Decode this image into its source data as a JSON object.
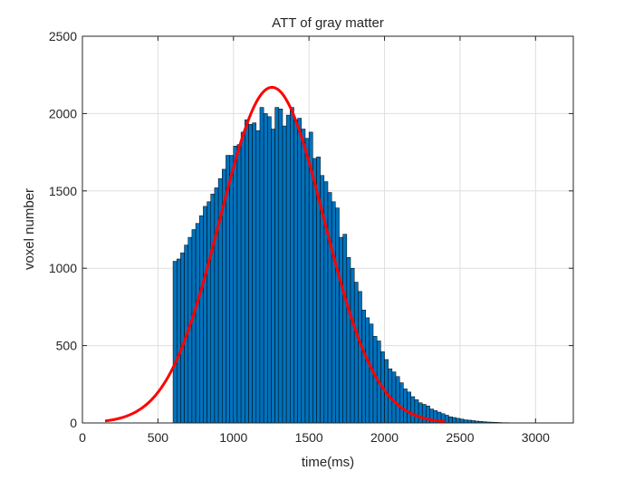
{
  "chart_data": {
    "type": "bar",
    "title": "ATT of gray matter",
    "xlabel": "time(ms)",
    "ylabel": "voxel number",
    "xlim": [
      0,
      3250
    ],
    "ylim": [
      0,
      2500
    ],
    "xticks": [
      0,
      500,
      1000,
      1500,
      2000,
      2500,
      3000
    ],
    "yticks": [
      0,
      500,
      1000,
      1500,
      2000,
      2500
    ],
    "grid": true,
    "histogram": {
      "bin_start": 600,
      "bin_width": 25,
      "counts": [
        1045,
        1060,
        1100,
        1150,
        1200,
        1250,
        1290,
        1340,
        1400,
        1430,
        1480,
        1520,
        1580,
        1640,
        1730,
        1730,
        1790,
        1800,
        1880,
        1960,
        1930,
        1940,
        1890,
        2040,
        2000,
        1980,
        1900,
        2040,
        2030,
        1920,
        1990,
        2040,
        1960,
        1970,
        1900,
        1840,
        1880,
        1710,
        1720,
        1600,
        1560,
        1490,
        1430,
        1390,
        1200,
        1220,
        1070,
        1000,
        910,
        850,
        730,
        680,
        640,
        560,
        530,
        460,
        410,
        350,
        330,
        300,
        260,
        220,
        200,
        170,
        150,
        130,
        120,
        110,
        90,
        80,
        70,
        60,
        50,
        40,
        35,
        30,
        25,
        20,
        18,
        15,
        12,
        10,
        8,
        6,
        5,
        4,
        3,
        2,
        2,
        1,
        1,
        1,
        1
      ],
      "fill_color": "#0072BD",
      "edge_color": "#000000"
    },
    "fit_curve": {
      "type": "gaussian",
      "amplitude": 2170,
      "mean": 1255,
      "sigma": 345,
      "x_range": [
        150,
        2400
      ],
      "color": "#FF0000"
    }
  }
}
